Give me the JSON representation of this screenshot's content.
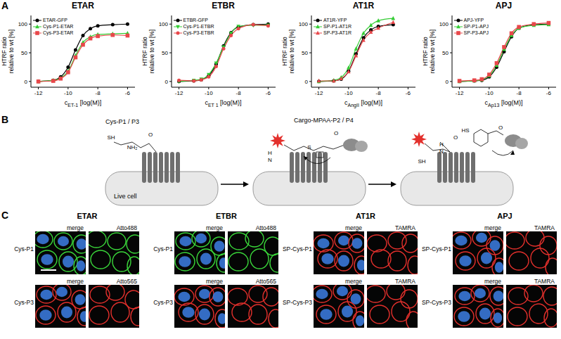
{
  "panel_labels": [
    "A",
    "B",
    "C"
  ],
  "chart_data": [
    {
      "type": "line",
      "title": "ETAR",
      "x_label": {
        "symbol": "c",
        "subscript": "ET-1",
        "unit": "[log(M)]"
      },
      "y_label": [
        "HTRF ratio",
        "relative to wt [%]"
      ],
      "xlim": [
        -12.5,
        -5.5
      ],
      "xticks": [
        -12,
        -10,
        -8,
        -6
      ],
      "ylim": [
        -10,
        115
      ],
      "yticks": [
        0,
        50,
        100
      ],
      "legend": "upper left",
      "x": [
        -12,
        -11,
        -10.5,
        -10,
        -9.5,
        -9,
        -8.5,
        -8,
        -7,
        -6
      ],
      "series": [
        {
          "name": "ETAR-GFP",
          "color": "#000000",
          "marker": "circle",
          "values": [
            0,
            2,
            8,
            25,
            55,
            80,
            92,
            97,
            99,
            100
          ]
        },
        {
          "name": "Cys-P1-ETAR",
          "color": "#33cc33",
          "marker": "triangle",
          "values": [
            0,
            2,
            6,
            18,
            45,
            68,
            78,
            82,
            83,
            84
          ]
        },
        {
          "name": "Cys-P3-ETAR",
          "color": "#e8474a",
          "marker": "square",
          "values": [
            0,
            1,
            5,
            16,
            42,
            64,
            75,
            79,
            81,
            80
          ]
        }
      ]
    },
    {
      "type": "line",
      "title": "ETBR",
      "x_label": {
        "symbol": "c",
        "subscript": "ET 1",
        "unit": "[log(M)]"
      },
      "y_label": [
        "HTRF ratio",
        "relative to wt [%]"
      ],
      "xlim": [
        -12.5,
        -5.5
      ],
      "xticks": [
        -12,
        -10,
        -8,
        -6
      ],
      "ylim": [
        -10,
        115
      ],
      "yticks": [
        0,
        50,
        100
      ],
      "legend": "upper left",
      "x": [
        -12,
        -11,
        -10.5,
        -10,
        -9.5,
        -9,
        -8.5,
        -8,
        -7,
        -6
      ],
      "series": [
        {
          "name": "ETBR-GFP",
          "color": "#000000",
          "marker": "circle",
          "values": [
            0,
            1,
            3,
            10,
            30,
            62,
            85,
            95,
            99,
            100
          ]
        },
        {
          "name": "Cys-P1-ETBR",
          "color": "#33cc33",
          "marker": "triangle-down",
          "values": [
            0,
            2,
            4,
            12,
            32,
            60,
            84,
            96,
            98,
            98
          ]
        },
        {
          "name": "Cys-P3-ETBR",
          "color": "#e8474a",
          "marker": "circle",
          "values": [
            2,
            1,
            3,
            8,
            26,
            57,
            80,
            92,
            99,
            97
          ]
        }
      ]
    },
    {
      "type": "line",
      "title": "AT1R",
      "x_label": {
        "symbol": "c",
        "subscript": "AngII",
        "unit": "[log(M)]"
      },
      "y_label": [
        "HTRF ratio",
        "relative to wt [%]"
      ],
      "xlim": [
        -12.5,
        -5.5
      ],
      "xticks": [
        -12,
        -10,
        -8,
        -6
      ],
      "ylim": [
        -10,
        115
      ],
      "yticks": [
        0,
        50,
        100
      ],
      "legend": "upper left",
      "x": [
        -12,
        -11,
        -10.5,
        -10,
        -9.5,
        -9,
        -8.5,
        -8,
        -7,
        -6
      ],
      "series": [
        {
          "name": "AT1R-YFP",
          "color": "#000000",
          "marker": "circle",
          "values": [
            0,
            1,
            4,
            18,
            48,
            76,
            90,
            96,
            99,
            null
          ]
        },
        {
          "name": "SP-P1-AT1R",
          "color": "#33cc33",
          "marker": "triangle",
          "values": [
            0,
            2,
            7,
            24,
            57,
            84,
            98,
            106,
            110,
            null
          ]
        },
        {
          "name": "SP-P3-AT1R",
          "color": "#e8474a",
          "marker": "triangle",
          "values": [
            1,
            1,
            5,
            17,
            45,
            72,
            86,
            93,
            103,
            null
          ]
        }
      ]
    },
    {
      "type": "line",
      "title": "APJ",
      "x_label": {
        "symbol": "c",
        "subscript": "Ap13",
        "unit": "[log(M)]"
      },
      "y_label": [
        "HTRF ratio",
        "relative to wt [%]"
      ],
      "xlim": [
        -12.5,
        -5.5
      ],
      "xticks": [
        -12,
        -10,
        -8,
        -6
      ],
      "ylim": [
        -10,
        115
      ],
      "yticks": [
        0,
        50,
        100
      ],
      "legend": "upper left",
      "x": [
        -12,
        -11,
        -10.5,
        -10,
        -9.5,
        -9,
        -8.5,
        -8,
        -7,
        -6
      ],
      "series": [
        {
          "name": "APJ-YFP",
          "color": "#000000",
          "marker": "circle",
          "values": [
            0,
            1,
            2,
            8,
            25,
            52,
            78,
            93,
            99,
            100
          ]
        },
        {
          "name": "SP-P1-APJ",
          "color": "#33cc33",
          "marker": "triangle",
          "values": [
            0,
            1,
            3,
            10,
            28,
            56,
            80,
            93,
            98,
            99
          ]
        },
        {
          "name": "SP-P3-APJ",
          "color": "#e8474a",
          "marker": "square",
          "values": [
            1,
            2,
            4,
            12,
            32,
            60,
            84,
            95,
            100,
            102
          ]
        }
      ]
    }
  ],
  "diagram": {
    "reagents": [
      "Cys-P1 / P3",
      "Cargo-MPAA-P2 / P4"
    ],
    "cell_label": "Live cell",
    "structures": [
      [
        "SH",
        "NH₂",
        "O"
      ],
      [
        "H",
        "N",
        "S",
        "O"
      ],
      [
        "HS",
        "O",
        "SH",
        "H",
        "N",
        "O"
      ]
    ]
  },
  "microscopy": {
    "groups": [
      {
        "title": "ETAR",
        "rows": [
          {
            "label": "Cys-P1",
            "merge": "merge",
            "channel": "Atto488",
            "color": "#3ad63a"
          },
          {
            "label": "Cys-P3",
            "merge": "merge",
            "channel": "Atto565",
            "color": "#e3302c"
          }
        ]
      },
      {
        "title": "ETBR",
        "rows": [
          {
            "label": "Cys-P1",
            "merge": "merge",
            "channel": "Atto488",
            "color": "#3ad63a"
          },
          {
            "label": "Cys-P3",
            "merge": "merge",
            "channel": "Atto565",
            "color": "#e3302c"
          }
        ]
      },
      {
        "title": "AT1R",
        "rows": [
          {
            "label": "SP-Cys-P1",
            "merge": "merge",
            "channel": "TAMRA",
            "color": "#e3302c"
          },
          {
            "label": "SP-Cys-P3",
            "merge": "merge",
            "channel": "TAMRA",
            "color": "#e3302c"
          }
        ]
      },
      {
        "title": "APJ",
        "rows": [
          {
            "label": "SP-Cys-P1",
            "merge": "merge",
            "channel": "TAMRA",
            "color": "#e3302c"
          },
          {
            "label": "SP-Cys-P3",
            "merge": "merge",
            "channel": "TAMRA",
            "color": "#e3302c"
          }
        ]
      }
    ]
  }
}
